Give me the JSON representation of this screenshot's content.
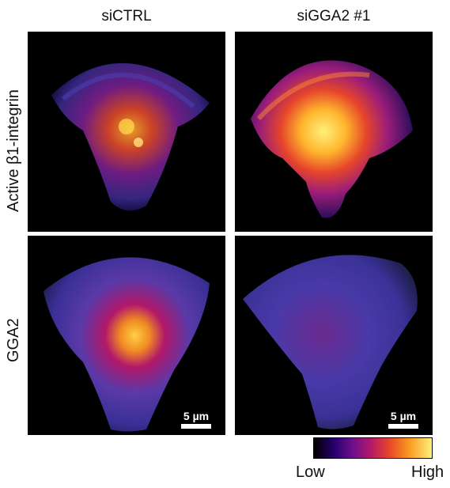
{
  "columns": [
    {
      "title": "siCTRL"
    },
    {
      "title": "siGGA2 #1"
    }
  ],
  "rows": [
    {
      "label": "Active β1-integrin"
    },
    {
      "label": "GGA2"
    }
  ],
  "scale_bar": {
    "label": "5 µm"
  },
  "colorbar": {
    "low_label": "Low",
    "high_label": "High",
    "colors": [
      "#000000",
      "#2a0070",
      "#6a0e8c",
      "#b2186a",
      "#e6452a",
      "#f8961e",
      "#fff07a"
    ]
  }
}
